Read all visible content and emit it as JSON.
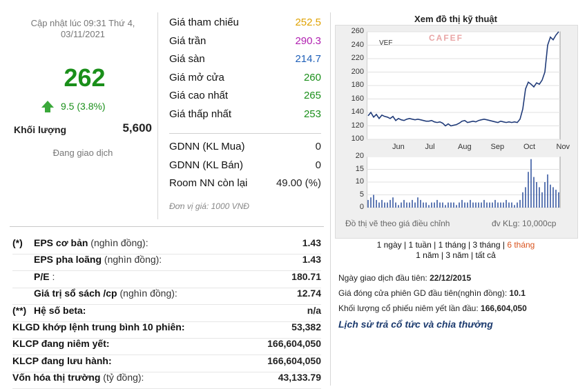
{
  "header": {
    "update_time_line1": "Cập nhật lúc 09:31 Thứ 4,",
    "update_time_line2": "03/11/2021"
  },
  "quote": {
    "price": "262",
    "change": "9.5 (3.8%)",
    "volume_label": "Khối lượng",
    "volume_value": "5,600",
    "status": "Đang giao dịch"
  },
  "price_rows": [
    {
      "label": "Giá tham chiếu",
      "value": "252.5",
      "color": "#e0a200"
    },
    {
      "label": "Giá trần",
      "value": "290.3",
      "color": "#b01fb0"
    },
    {
      "label": "Giá sàn",
      "value": "214.7",
      "color": "#1e5fb8"
    },
    {
      "label": "Giá mở cửa",
      "value": "260",
      "color": "#1a8f1a"
    },
    {
      "label": "Giá cao nhất",
      "value": "265",
      "color": "#1a8f1a"
    },
    {
      "label": "Giá thấp nhất",
      "value": "253",
      "color": "#1a8f1a"
    }
  ],
  "foreign_rows": [
    {
      "label": "GDNN (KL Mua)",
      "value": "0"
    },
    {
      "label": "GDNN (KL Bán)",
      "value": "0"
    },
    {
      "label": "Room NN còn lại",
      "value": "49.00 (%)"
    }
  ],
  "unit_note": "Đơn vị giá: 1000 VNĐ",
  "fundamentals": [
    {
      "prefix": "(*)",
      "label": "EPS cơ bản",
      "suffix": " (nghìn đồng):",
      "value": "1.43"
    },
    {
      "prefix": "",
      "label": "EPS pha loãng",
      "suffix": " (nghìn đồng):",
      "value": "1.43"
    },
    {
      "prefix": "",
      "label": "P/E",
      "suffix": " :",
      "value": "180.71"
    },
    {
      "prefix": "",
      "label": "Giá trị sổ sách /cp",
      "suffix": " (nghìn đồng):",
      "value": "12.74"
    },
    {
      "prefix": "(**)",
      "label": "Hệ số beta:",
      "suffix": "",
      "value": "n/a"
    },
    {
      "prefix": "",
      "label": "KLGD khớp lệnh trung bình 10 phiên:",
      "suffix": "",
      "value": "53,382"
    },
    {
      "prefix": "",
      "label": "KLCP đang niêm yết:",
      "suffix": "",
      "value": "166,604,050"
    },
    {
      "prefix": "",
      "label": "KLCP đang lưu hành:",
      "suffix": "",
      "value": "166,604,050"
    },
    {
      "prefix": "",
      "label": "Vốn hóa thị trường",
      "suffix": " (tỷ đồng):",
      "value": "43,133.79"
    }
  ],
  "chart": {
    "title": "Xem đồ thị kỹ thuật",
    "ticker": "VEF",
    "watermark": "CAFEF",
    "adjust_note": "Đồ thị vẽ theo giá điều chỉnh",
    "volume_unit": "đv KLg: 10,000cp",
    "line_color": "#1f3a78",
    "vol_color": "#2a4e9a"
  },
  "chart_data": [
    {
      "type": "line",
      "title": "",
      "series": [
        {
          "name": "VEF",
          "values": [
            135,
            140,
            133,
            137,
            131,
            136,
            134,
            133,
            131,
            134,
            128,
            131,
            129,
            128,
            130,
            131,
            130,
            129,
            130,
            129,
            128,
            127,
            127,
            128,
            126,
            125,
            126,
            124,
            120,
            123,
            120,
            121,
            122,
            124,
            127,
            128,
            125,
            126,
            127,
            126,
            128,
            129,
            130,
            129,
            128,
            127,
            126,
            125,
            127,
            126,
            125,
            126,
            125,
            126,
            125,
            130,
            145,
            175,
            185,
            182,
            178,
            184,
            182,
            188,
            200,
            240,
            252,
            248,
            255,
            260
          ]
        }
      ],
      "x_ticks": [
        "Jun",
        "Jul",
        "Aug",
        "Sep",
        "Oct",
        "Nov"
      ],
      "y_ticks": [
        100,
        120,
        140,
        160,
        180,
        200,
        220,
        240,
        260
      ],
      "ylim": [
        100,
        260
      ],
      "grid": true
    },
    {
      "type": "bar",
      "title": "",
      "series": [
        {
          "name": "",
          "values": [
            3,
            4,
            5,
            3,
            2,
            3,
            2,
            2,
            3,
            4,
            2,
            1,
            2,
            3,
            2,
            2,
            3,
            2,
            4,
            3,
            2,
            2,
            1,
            2,
            2,
            3,
            2,
            2,
            1,
            2,
            2,
            2,
            1,
            2,
            3,
            2,
            2,
            3,
            2,
            2,
            2,
            2,
            3,
            2,
            2,
            2,
            3,
            2,
            2,
            2,
            3,
            2,
            2,
            1,
            2,
            3,
            6,
            8,
            14,
            19,
            12,
            10,
            8,
            6,
            10,
            13,
            9,
            8,
            7,
            6
          ]
        }
      ],
      "y_ticks": [
        0,
        5,
        10,
        15,
        20
      ],
      "ylim": [
        0,
        20
      ],
      "grid": true
    }
  ],
  "periods_line1": [
    {
      "label": "1 ngày",
      "active": false
    },
    {
      "label": "1 tuần",
      "active": false
    },
    {
      "label": "1 tháng",
      "active": false
    },
    {
      "label": "3 tháng",
      "active": false
    },
    {
      "label": "6 tháng",
      "active": true
    }
  ],
  "periods_line2": [
    {
      "label": "1 năm",
      "active": false
    },
    {
      "label": "3 năm",
      "active": false
    },
    {
      "label": "tất cả",
      "active": false
    }
  ],
  "info": {
    "first_trade_label": "Ngày giao dịch đầu tiên: ",
    "first_trade_value": "22/12/2015",
    "first_close_label": "Giá đóng cửa phiên GD đầu tiên(nghìn đồng): ",
    "first_close_value": "10.1",
    "first_volume_label": "Khối lượng cổ phiếu niêm yết lần đầu: ",
    "first_volume_value": "166,604,050",
    "history_link": "Lịch sử trả cổ tức và chia thưởng"
  }
}
